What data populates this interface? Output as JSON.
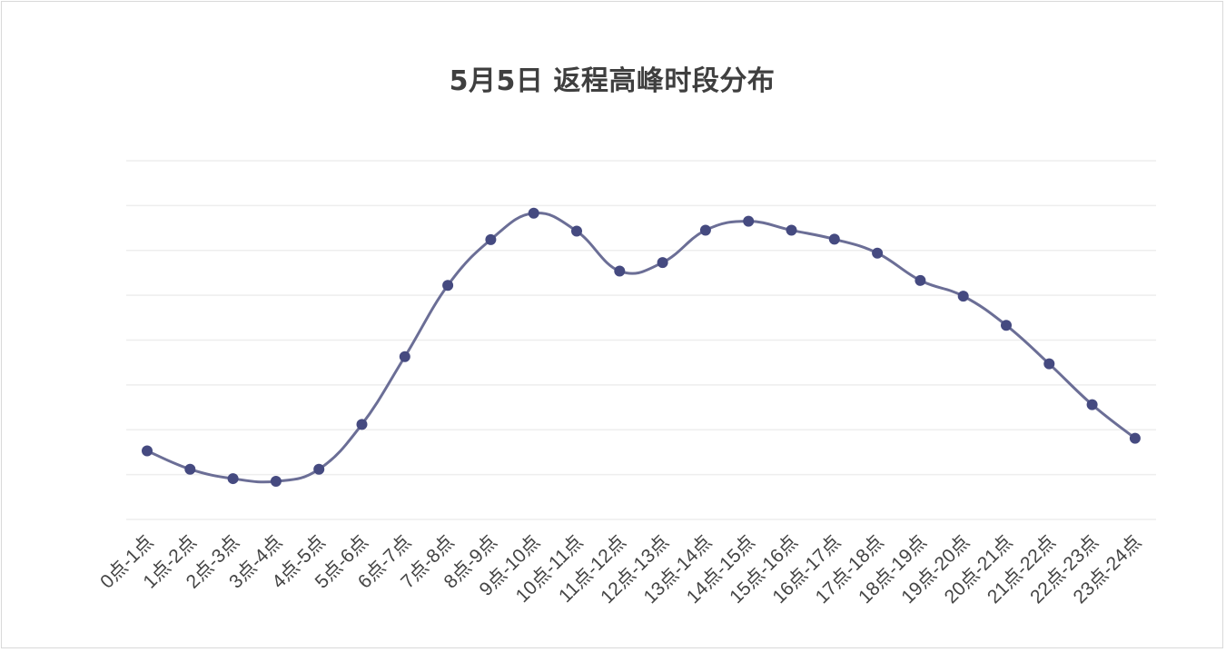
{
  "chart_data": {
    "type": "line",
    "title": "5月5日 返程高峰时段分布",
    "xlabel": "",
    "ylabel": "",
    "categories": [
      "0点-1点",
      "1点-2点",
      "2点-3点",
      "3点-4点",
      "4点-5点",
      "5点-6点",
      "6点-7点",
      "7点-8点",
      "8点-9点",
      "9点-10点",
      "10点-11点",
      "11点-12点",
      "12点-13点",
      "13点-14点",
      "14点-15点",
      "15点-16点",
      "16点-17点",
      "17点-18点",
      "18点-19点",
      "19点-20点",
      "20点-21点",
      "21点-22点",
      "22点-23点",
      "23点-24点"
    ],
    "series": [
      {
        "values": [
          1.53,
          1.12,
          0.91,
          0.85,
          1.12,
          2.12,
          3.63,
          5.22,
          6.24,
          6.83,
          6.43,
          5.54,
          5.73,
          6.45,
          6.65,
          6.45,
          6.25,
          5.94,
          5.33,
          4.98,
          4.33,
          3.47,
          2.56,
          1.81
        ]
      }
    ],
    "ylim": [
      0,
      8
    ],
    "gridlines": 9,
    "grid": true,
    "legend": "none",
    "axis_labels_visible": false,
    "line_color": "#6b6e96",
    "marker_color": "#454a80",
    "grid_color": "#eeeeee"
  }
}
